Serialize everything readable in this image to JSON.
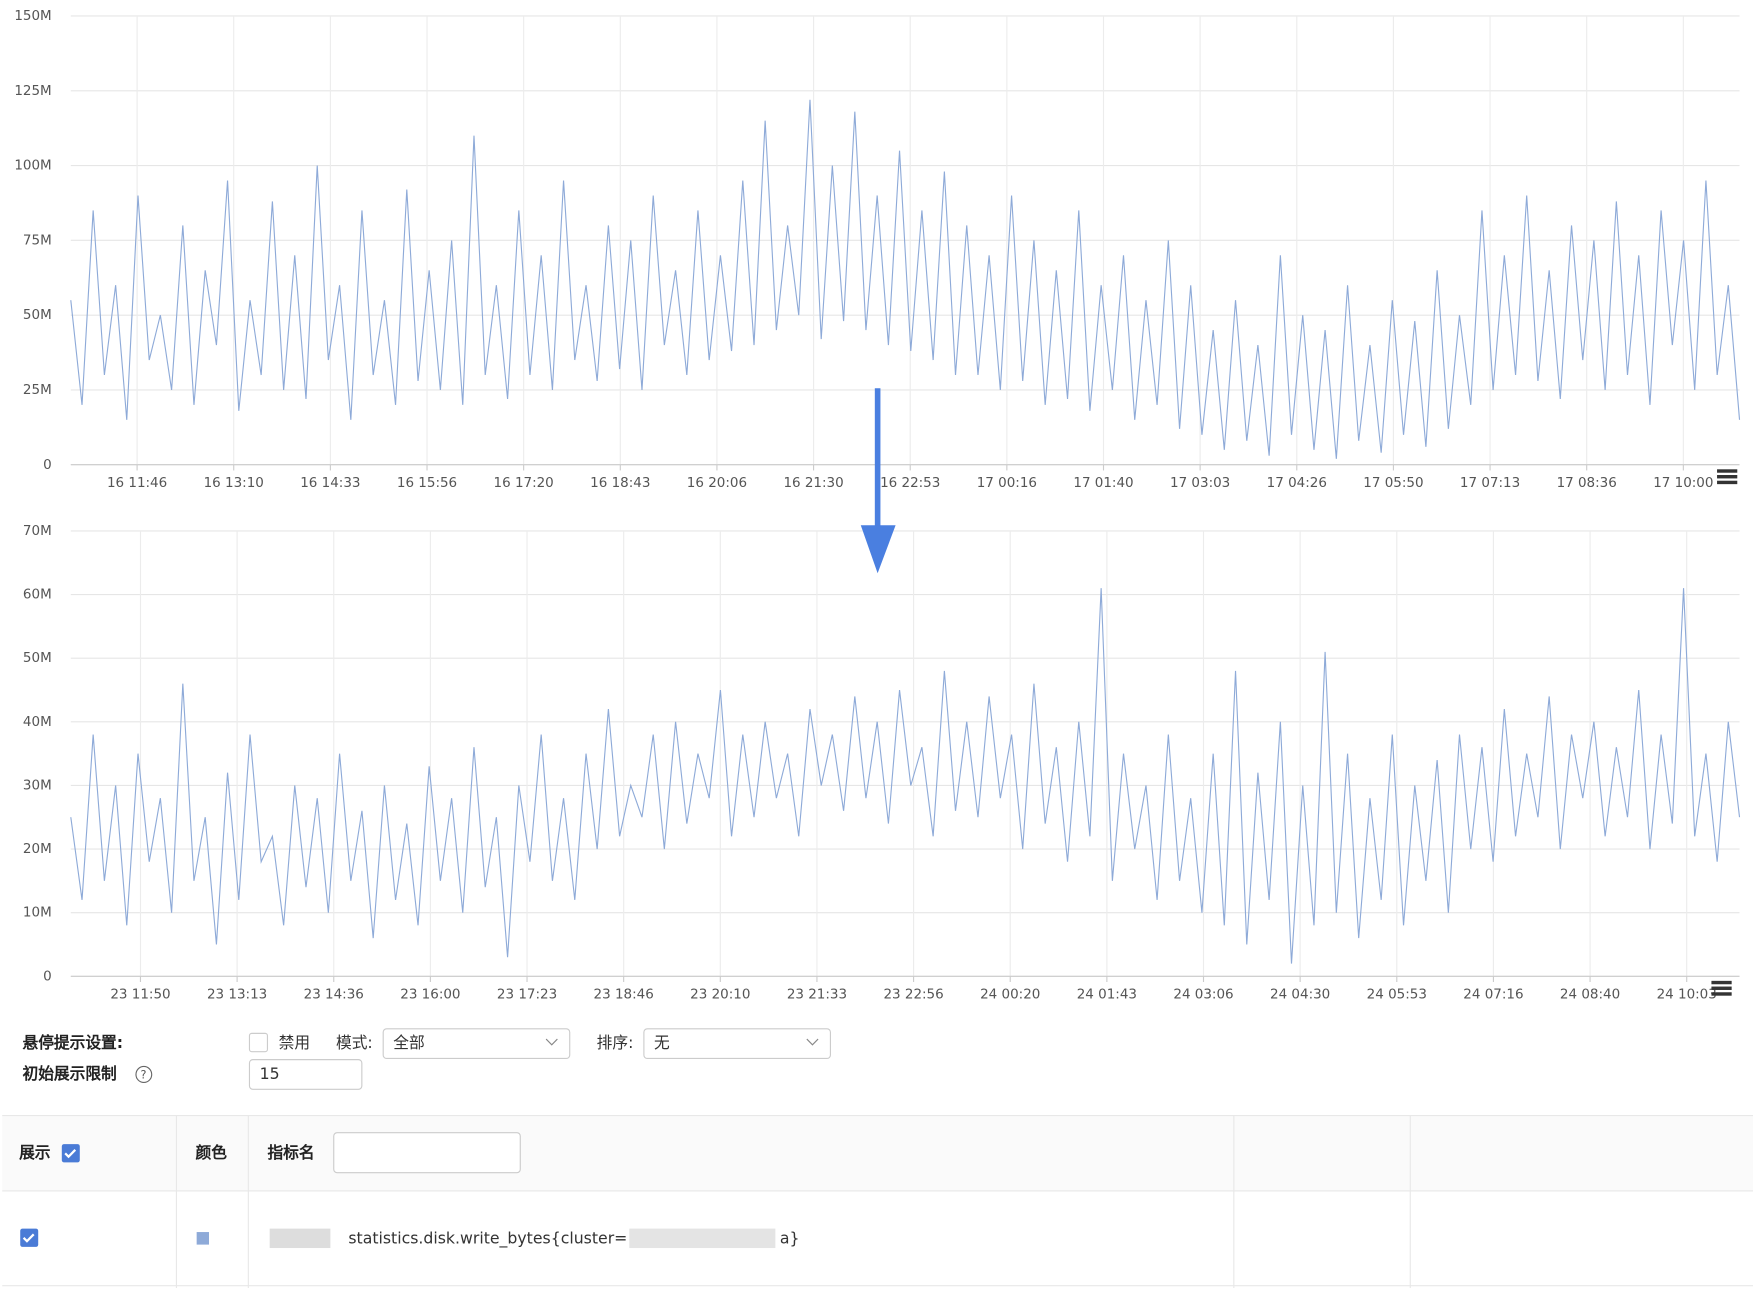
{
  "chart_data": [
    {
      "type": "line",
      "color": "#8eaad8",
      "ylim": [
        0,
        150
      ],
      "yticks": [
        0,
        {
          "value": 25,
          "label": "25M"
        },
        {
          "value": 50,
          "label": "50M"
        },
        {
          "value": 75,
          "label": "75M"
        },
        {
          "value": 100,
          "label": "100M"
        },
        {
          "value": 125,
          "label": "125M"
        },
        {
          "value": 150,
          "label": "150M"
        }
      ],
      "xtick_labels": [
        "16 11:46",
        "16 13:10",
        "16 14:33",
        "16 15:56",
        "16 17:20",
        "16 18:43",
        "16 20:06",
        "16 21:30",
        "16 22:53",
        "17 00:16",
        "17 01:40",
        "17 03:03",
        "17 04:26",
        "17 05:50",
        "17 07:13",
        "17 08:36",
        "17 10:00"
      ],
      "values": [
        55,
        20,
        85,
        30,
        60,
        15,
        90,
        35,
        50,
        25,
        80,
        20,
        65,
        40,
        95,
        18,
        55,
        30,
        88,
        25,
        70,
        22,
        100,
        35,
        60,
        15,
        85,
        30,
        55,
        20,
        92,
        28,
        65,
        25,
        75,
        20,
        110,
        30,
        60,
        22,
        85,
        30,
        70,
        25,
        95,
        35,
        60,
        28,
        80,
        32,
        75,
        25,
        90,
        40,
        65,
        30,
        85,
        35,
        70,
        38,
        95,
        40,
        115,
        45,
        80,
        50,
        122,
        42,
        100,
        48,
        118,
        45,
        90,
        40,
        105,
        38,
        85,
        35,
        98,
        30,
        80,
        30,
        70,
        25,
        90,
        28,
        75,
        20,
        65,
        22,
        85,
        18,
        60,
        25,
        70,
        15,
        55,
        20,
        75,
        12,
        60,
        10,
        45,
        5,
        55,
        8,
        40,
        3,
        70,
        10,
        50,
        5,
        45,
        2,
        60,
        8,
        40,
        4,
        55,
        10,
        48,
        6,
        65,
        12,
        50,
        20,
        85,
        25,
        70,
        30,
        90,
        28,
        65,
        22,
        80,
        35,
        75,
        25,
        88,
        30,
        70,
        20,
        85,
        40,
        75,
        25,
        95,
        30,
        60,
        15
      ]
    },
    {
      "type": "line",
      "color": "#8eaad8",
      "ylim": [
        0,
        70
      ],
      "yticks": [
        0,
        {
          "value": 10,
          "label": "10M"
        },
        {
          "value": 20,
          "label": "20M"
        },
        {
          "value": 30,
          "label": "30M"
        },
        {
          "value": 40,
          "label": "40M"
        },
        {
          "value": 50,
          "label": "50M"
        },
        {
          "value": 60,
          "label": "60M"
        },
        {
          "value": 70,
          "label": "70M"
        }
      ],
      "xtick_labels": [
        "23 11:50",
        "23 13:13",
        "23 14:36",
        "23 16:00",
        "23 17:23",
        "23 18:46",
        "23 20:10",
        "23 21:33",
        "23 22:56",
        "24 00:20",
        "24 01:43",
        "24 03:06",
        "24 04:30",
        "24 05:53",
        "24 07:16",
        "24 08:40",
        "24 10:03"
      ],
      "values": [
        25,
        12,
        38,
        15,
        30,
        8,
        35,
        18,
        28,
        10,
        46,
        15,
        25,
        5,
        32,
        12,
        38,
        18,
        22,
        8,
        30,
        14,
        28,
        10,
        35,
        15,
        26,
        6,
        30,
        12,
        24,
        8,
        33,
        15,
        28,
        10,
        36,
        14,
        25,
        3,
        30,
        18,
        38,
        15,
        28,
        12,
        35,
        20,
        42,
        22,
        30,
        25,
        38,
        20,
        40,
        24,
        35,
        28,
        45,
        22,
        38,
        25,
        40,
        28,
        35,
        22,
        42,
        30,
        38,
        26,
        44,
        28,
        40,
        24,
        45,
        30,
        36,
        22,
        48,
        26,
        40,
        25,
        44,
        28,
        38,
        20,
        46,
        24,
        36,
        18,
        40,
        22,
        61,
        15,
        35,
        20,
        30,
        12,
        38,
        15,
        28,
        10,
        35,
        8,
        48,
        5,
        32,
        12,
        40,
        2,
        30,
        8,
        51,
        10,
        35,
        6,
        28,
        12,
        38,
        8,
        30,
        15,
        34,
        10,
        38,
        20,
        36,
        18,
        42,
        22,
        35,
        25,
        44,
        20,
        38,
        28,
        40,
        22,
        36,
        25,
        45,
        20,
        38,
        24,
        61,
        22,
        35,
        18,
        40,
        25
      ]
    }
  ],
  "hover_settings": {
    "label": "悬停提示设置:",
    "disable": "禁用",
    "mode_label": "模式:",
    "mode": "全部",
    "sort_label": "排序:",
    "sort": "无",
    "limit_label": "初始展示限制",
    "limit": 15
  },
  "table": {
    "headers": [
      "展示",
      "颜色",
      "指标名"
    ],
    "rows": [
      [
        "statistics.disk.write_bytes{cluster=",
        "a}"
      ]
    ]
  }
}
